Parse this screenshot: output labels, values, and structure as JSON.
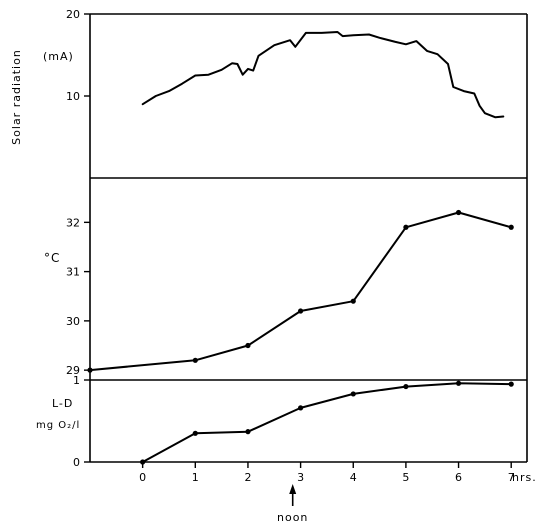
{
  "chart_data": [
    {
      "type": "line",
      "panel": "solar",
      "ylabel": "Solar radiation",
      "unit_label": "(mA)",
      "ylim": [
        0,
        20
      ],
      "yticks": [
        "20",
        "10"
      ],
      "yticks_values": [
        20,
        10
      ],
      "x": [
        0,
        0.25,
        0.5,
        0.75,
        1.0,
        1.25,
        1.5,
        1.7,
        1.8,
        1.9,
        2.0,
        2.1,
        2.2,
        2.5,
        2.8,
        2.9,
        3.1,
        3.4,
        3.7,
        3.8,
        4.0,
        4.3,
        4.5,
        4.8,
        5.0,
        5.2,
        5.4,
        5.6,
        5.8,
        5.9,
        6.1,
        6.3,
        6.4,
        6.5,
        6.7,
        6.85
      ],
      "y": [
        9.0,
        10.0,
        10.6,
        11.5,
        12.5,
        12.6,
        13.2,
        14.0,
        13.9,
        12.6,
        13.3,
        13.1,
        14.9,
        16.2,
        16.8,
        16.0,
        17.7,
        17.7,
        17.8,
        17.3,
        17.4,
        17.5,
        17.1,
        16.6,
        16.3,
        16.7,
        15.5,
        15.1,
        13.9,
        11.1,
        10.6,
        10.3,
        8.8,
        7.9,
        7.4,
        7.5
      ],
      "points": false
    },
    {
      "type": "line",
      "panel": "temperature",
      "ylabel": "°C",
      "ylim": [
        28.8,
        32.9
      ],
      "yticks": [
        "32",
        "31",
        "30",
        "29"
      ],
      "yticks_values": [
        32,
        31,
        30,
        29
      ],
      "x": [
        -1,
        1,
        2,
        3,
        4,
        5,
        6,
        7
      ],
      "y": [
        29.0,
        29.2,
        29.5,
        30.2,
        30.4,
        31.9,
        32.2,
        31.9
      ],
      "points": true
    },
    {
      "type": "line",
      "panel": "oxygen",
      "ylabel_line1": "L-D",
      "ylabel_line2": "mg O₂/l",
      "ylim": [
        0,
        1
      ],
      "yticks": [
        "1",
        "0"
      ],
      "yticks_values": [
        1,
        0
      ],
      "x": [
        0,
        1,
        2,
        3,
        4,
        5,
        6,
        7
      ],
      "y": [
        0.0,
        0.35,
        0.37,
        0.66,
        0.83,
        0.92,
        0.96,
        0.95
      ],
      "points": true
    }
  ],
  "x_axis": {
    "ticks": [
      "0",
      "1",
      "2",
      "3",
      "4",
      "5",
      "6",
      "7"
    ],
    "tick_values": [
      0,
      1,
      2,
      3,
      4,
      5,
      6,
      7
    ],
    "xlim": [
      -1,
      7.3
    ],
    "unit": "hrs.",
    "annotation": "noon",
    "annotation_x": 2.85
  }
}
